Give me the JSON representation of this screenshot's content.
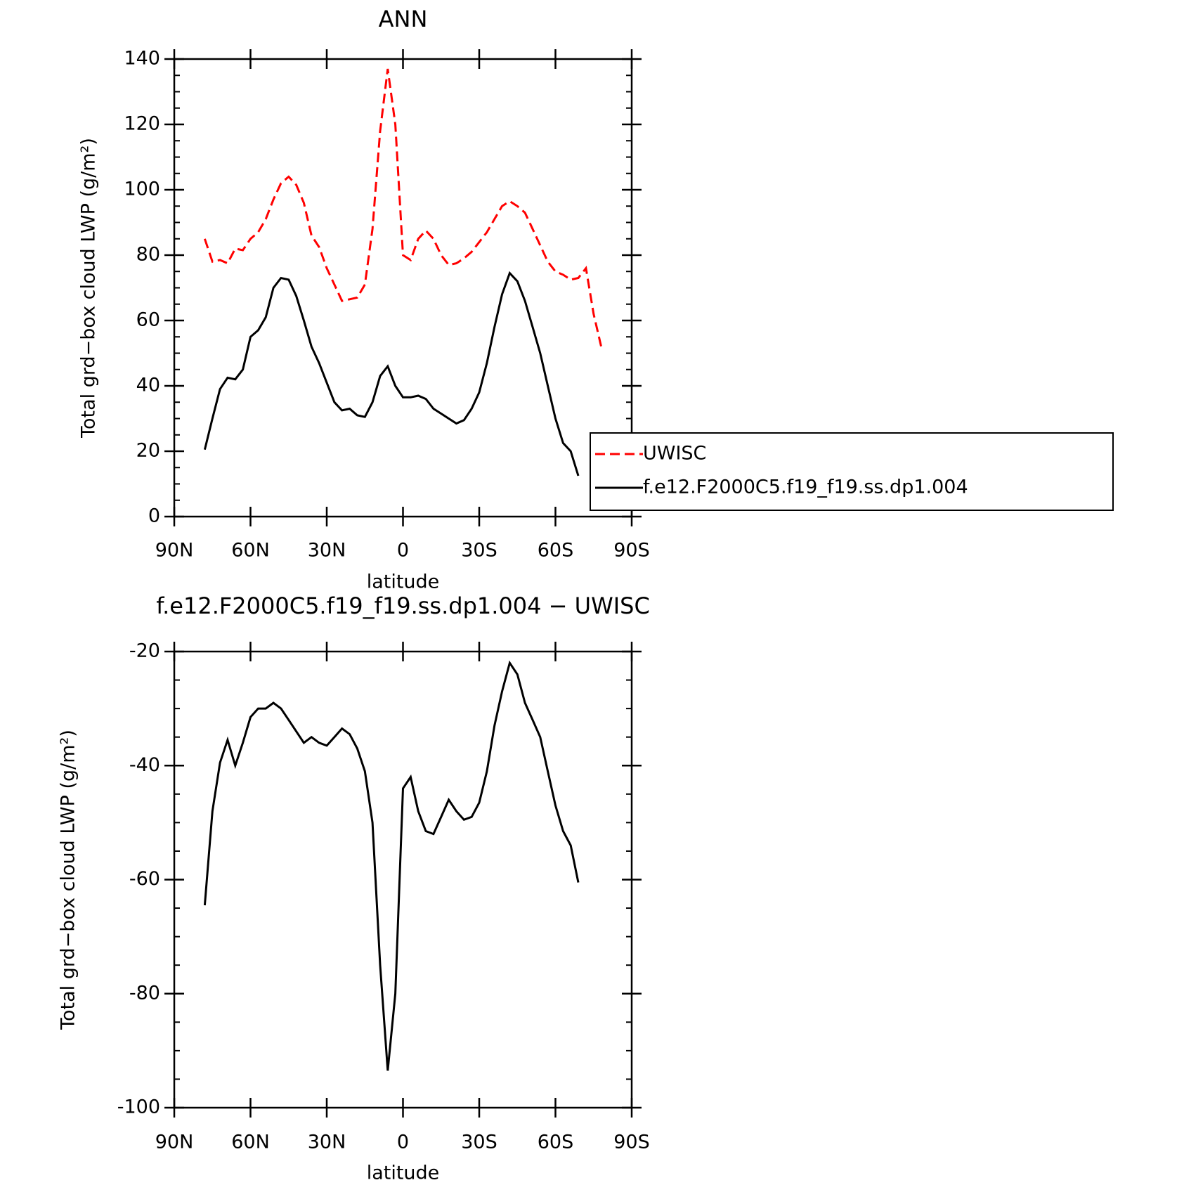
{
  "chart_data": [
    {
      "type": "line",
      "title": "ANN",
      "xlabel": "latitude",
      "ylabel": "Total grd−box cloud LWP (g/m²)",
      "x": [
        78,
        75,
        72,
        69,
        66,
        63,
        60,
        57,
        54,
        51,
        48,
        45,
        42,
        39,
        36,
        33,
        30,
        27,
        24,
        21,
        18,
        15,
        12,
        9,
        6,
        3,
        0,
        -3,
        -6,
        -9,
        -12,
        -15,
        -18,
        -21,
        -24,
        -27,
        -30,
        -33,
        -36,
        -39,
        -42,
        -45,
        -48,
        -51,
        -54,
        -57,
        -60,
        -63,
        -66,
        -69,
        -72,
        -75,
        -78
      ],
      "series": [
        {
          "name": "UWISC",
          "color": "#ff0000",
          "dashed": true,
          "values": [
            85,
            78,
            78.5,
            77.5,
            82,
            81.5,
            85,
            87,
            91,
            97,
            102,
            104,
            101.5,
            96,
            86,
            82.5,
            76,
            71,
            66,
            66.5,
            67,
            71,
            88,
            118,
            137,
            120,
            80,
            78.5,
            85,
            87.5,
            85,
            80,
            77,
            77.5,
            79,
            81,
            84,
            87,
            91,
            95,
            96.5,
            95,
            93,
            88,
            83,
            78,
            75,
            74,
            72.5,
            73,
            76,
            62,
            52
          ]
        },
        {
          "name": "f.e12.F2000C5.f19_f19.ss.dp1.004",
          "color": "#000000",
          "dashed": false,
          "values": [
            20.5,
            30,
            39,
            42.5,
            42,
            45,
            55,
            57,
            61,
            70,
            73,
            72.5,
            67.5,
            60,
            52,
            47,
            41,
            35,
            32.5,
            33,
            31,
            30.5,
            35,
            43,
            46,
            40,
            36.5,
            36.5,
            37,
            36,
            33,
            31.5,
            30,
            28.5,
            29.5,
            33,
            38,
            47,
            58,
            68,
            74.5,
            72,
            66,
            58,
            50,
            40,
            30,
            22.5,
            20,
            12.5,
            null,
            null,
            null
          ]
        }
      ],
      "xlim": [
        90,
        -90
      ],
      "xticks": [
        {
          "value": 90,
          "label": "90N"
        },
        {
          "value": 60,
          "label": "60N"
        },
        {
          "value": 30,
          "label": "30N"
        },
        0,
        {
          "value": -30,
          "label": "30S"
        },
        {
          "value": -60,
          "label": "60S"
        },
        {
          "value": -90,
          "label": "90S"
        }
      ],
      "ylim": [
        0,
        140
      ],
      "yticks": [
        0,
        20,
        40,
        60,
        80,
        100,
        120,
        140
      ],
      "legend": "right"
    },
    {
      "type": "line",
      "title": "f.e12.F2000C5.f19_f19.ss.dp1.004 − UWISC",
      "xlabel": "latitude",
      "ylabel": "Total grd−box cloud LWP (g/m²)",
      "x": [
        78,
        75,
        72,
        69,
        66,
        63,
        60,
        57,
        54,
        51,
        48,
        45,
        42,
        39,
        36,
        33,
        30,
        27,
        24,
        21,
        18,
        15,
        12,
        9,
        6,
        3,
        0,
        -3,
        -6,
        -9,
        -12,
        -15,
        -18,
        -21,
        -24,
        -27,
        -30,
        -33,
        -36,
        -39,
        -42,
        -45,
        -48,
        -51,
        -54,
        -57,
        -60,
        -63,
        -66,
        -69
      ],
      "values": [
        -64.5,
        -48,
        -39.5,
        -35.5,
        -40,
        -36,
        -31.5,
        -30,
        -30,
        -29,
        -30,
        -32,
        -34,
        -36,
        -35,
        -36,
        -36.5,
        -35,
        -33.5,
        -34.5,
        -37,
        -41,
        -50,
        -75,
        -93.5,
        -80,
        -44,
        -42,
        -48,
        -51.5,
        -52,
        -49,
        -46,
        -48,
        -49.5,
        -49,
        -46.5,
        -41,
        -33,
        -27,
        -22,
        -24,
        -29,
        -32,
        -35,
        -41,
        -47,
        -51.5,
        -54,
        -60.5
      ],
      "color": "#000000",
      "xlim": [
        90,
        -90
      ],
      "xticks": [
        {
          "value": 90,
          "label": "90N"
        },
        {
          "value": 60,
          "label": "60N"
        },
        {
          "value": 30,
          "label": "30N"
        },
        0,
        {
          "value": -30,
          "label": "30S"
        },
        {
          "value": -60,
          "label": "60S"
        },
        {
          "value": -90,
          "label": "90S"
        }
      ],
      "ylim": [
        -100,
        -20
      ],
      "yticks": [
        -100,
        -80,
        -60,
        -40,
        -20
      ]
    }
  ]
}
